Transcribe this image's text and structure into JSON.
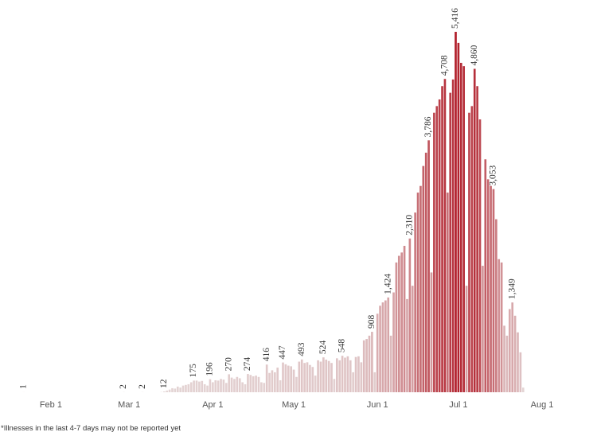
{
  "chart_data": {
    "type": "bar",
    "categories": [
      null,
      null,
      null,
      null,
      null,
      null,
      null,
      null,
      null,
      null,
      "Feb 1",
      null,
      null,
      null,
      null,
      null,
      null,
      null,
      null,
      null,
      null,
      null,
      null,
      null,
      null,
      null,
      null,
      null,
      null,
      null,
      null,
      null,
      null,
      null,
      null,
      null,
      null,
      null,
      null,
      "Mar 1",
      null,
      null,
      null,
      null,
      null,
      null,
      null,
      null,
      null,
      null,
      null,
      null,
      null,
      null,
      null,
      null,
      null,
      null,
      null,
      null,
      null,
      null,
      null,
      null,
      null,
      null,
      null,
      null,
      null,
      null,
      "Apr 1",
      null,
      null,
      null,
      null,
      null,
      null,
      null,
      null,
      null,
      null,
      null,
      null,
      null,
      null,
      null,
      null,
      null,
      null,
      null,
      null,
      null,
      null,
      null,
      null,
      null,
      null,
      null,
      null,
      null,
      "May 1",
      null,
      null,
      null,
      null,
      null,
      null,
      null,
      null,
      null,
      null,
      null,
      null,
      null,
      null,
      null,
      null,
      null,
      null,
      null,
      null,
      null,
      null,
      null,
      null,
      null,
      null,
      null,
      null,
      null,
      null,
      "Jun 1",
      null,
      null,
      null,
      null,
      null,
      null,
      null,
      null,
      null,
      null,
      null,
      null,
      null,
      null,
      null,
      null,
      null,
      null,
      null,
      null,
      null,
      null,
      null,
      null,
      null,
      null,
      null,
      null,
      null,
      "Jul 1",
      null,
      null,
      null,
      null,
      null,
      null,
      null,
      null,
      null,
      null,
      null,
      null,
      null,
      null,
      null,
      null,
      null,
      null,
      null,
      null,
      null,
      null,
      null,
      null,
      null,
      null,
      null,
      null,
      null,
      null,
      "Aug 1"
    ],
    "values": [
      1,
      0,
      0,
      0,
      0,
      0,
      0,
      0,
      0,
      0,
      0,
      0,
      0,
      0,
      0,
      0,
      0,
      0,
      0,
      0,
      0,
      0,
      0,
      0,
      0,
      0,
      0,
      0,
      0,
      0,
      0,
      0,
      0,
      0,
      0,
      0,
      0,
      2,
      0,
      0,
      0,
      0,
      0,
      0,
      2,
      0,
      0,
      0,
      0,
      0,
      0,
      3,
      12,
      25,
      40,
      60,
      55,
      85,
      70,
      100,
      110,
      120,
      150,
      175,
      175,
      160,
      170,
      120,
      100,
      196,
      150,
      180,
      175,
      200,
      190,
      140,
      270,
      220,
      200,
      230,
      210,
      150,
      120,
      274,
      260,
      240,
      250,
      230,
      150,
      140,
      416,
      290,
      330,
      300,
      370,
      180,
      447,
      420,
      400,
      390,
      340,
      230,
      460,
      493,
      440,
      450,
      410,
      380,
      250,
      480,
      460,
      524,
      490,
      470,
      440,
      200,
      510,
      480,
      548,
      520,
      540,
      480,
      300,
      530,
      540,
      450,
      780,
      800,
      850,
      908,
      300,
      1180,
      1300,
      1350,
      1380,
      1424,
      850,
      1500,
      1950,
      2050,
      2100,
      2200,
      1400,
      2310,
      1600,
      2700,
      3000,
      3100,
      3400,
      3600,
      3786,
      1800,
      4200,
      4300,
      4400,
      4600,
      4708,
      3000,
      4500,
      4700,
      5416,
      5250,
      4950,
      4900,
      1600,
      4200,
      4300,
      4860,
      4600,
      4100,
      1900,
      3500,
      3200,
      3100,
      3053,
      2600,
      2000,
      1950,
      1000,
      850,
      1250,
      1349,
      1150,
      900,
      600,
      70,
      null,
      null,
      null,
      null,
      null,
      null,
      null
    ],
    "value_labels": [
      "1",
      null,
      null,
      null,
      null,
      null,
      null,
      null,
      null,
      null,
      null,
      null,
      null,
      null,
      null,
      null,
      null,
      null,
      null,
      null,
      null,
      null,
      null,
      null,
      null,
      null,
      null,
      null,
      null,
      null,
      null,
      null,
      null,
      null,
      null,
      null,
      null,
      "2",
      null,
      null,
      null,
      null,
      null,
      null,
      "2",
      null,
      null,
      null,
      null,
      null,
      null,
      null,
      "12",
      null,
      null,
      null,
      null,
      null,
      null,
      null,
      null,
      null,
      null,
      "175",
      null,
      null,
      null,
      null,
      null,
      "196",
      null,
      null,
      null,
      null,
      null,
      null,
      "270",
      null,
      null,
      null,
      null,
      null,
      null,
      "274",
      null,
      null,
      null,
      null,
      null,
      null,
      "416",
      null,
      null,
      null,
      null,
      null,
      "447",
      null,
      null,
      null,
      null,
      null,
      null,
      "493",
      null,
      null,
      null,
      null,
      null,
      null,
      null,
      "524",
      null,
      null,
      null,
      null,
      null,
      null,
      "548",
      null,
      null,
      null,
      null,
      null,
      null,
      null,
      null,
      null,
      null,
      "908",
      null,
      null,
      null,
      null,
      null,
      "1,424",
      null,
      null,
      null,
      null,
      null,
      null,
      null,
      "2,310",
      null,
      null,
      null,
      null,
      null,
      null,
      "3,786",
      null,
      null,
      null,
      null,
      null,
      "4,708",
      null,
      null,
      null,
      "5,416",
      null,
      null,
      null,
      null,
      null,
      null,
      "4,860",
      null,
      null,
      null,
      null,
      null,
      null,
      "3,053",
      null,
      null,
      null,
      null,
      null,
      null,
      "1,349",
      null,
      null,
      null,
      null,
      null,
      null,
      null,
      null,
      null,
      null,
      null
    ],
    "color_range": [
      "#e4d6d6",
      "#b01c28"
    ],
    "footnote": "*Illnesses in the last 4-7 days may not be reported yet"
  }
}
